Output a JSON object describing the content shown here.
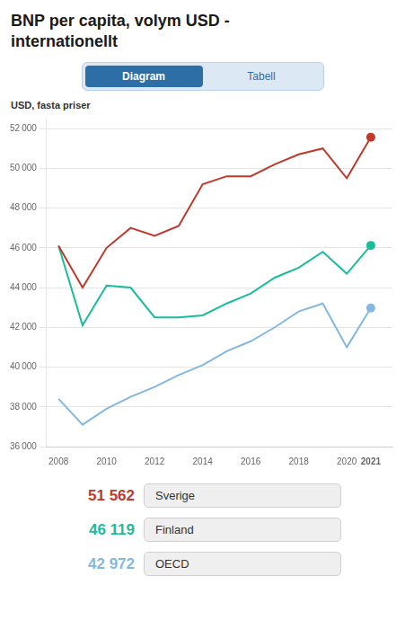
{
  "chart_data": {
    "type": "line",
    "title": [
      "BNP per capita, volym USD -",
      "internationellt"
    ],
    "ylabel": "USD, fasta priser",
    "annotations": [
      "Diagram",
      "Tabell"
    ],
    "x": [
      2008,
      2009,
      2010,
      2011,
      2012,
      2013,
      2014,
      2015,
      2016,
      2017,
      2018,
      2019,
      2020,
      2021
    ],
    "series": [
      {
        "name": "Sverige",
        "color": "#c0392b",
        "legend_value": "51 562",
        "values": [
          46100,
          44000,
          46000,
          47000,
          46600,
          47100,
          49200,
          49600,
          49600,
          50200,
          50700,
          51000,
          49500,
          51562
        ]
      },
      {
        "name": "Finland",
        "color": "#1abc9c",
        "legend_value": "46 119",
        "values": [
          46100,
          42100,
          44100,
          44000,
          42500,
          42500,
          42600,
          43200,
          43700,
          44500,
          45000,
          45800,
          44700,
          46119
        ]
      },
      {
        "name": "OECD",
        "color": "#85b8e0",
        "legend_value": "42 972",
        "values": [
          38400,
          37100,
          37900,
          38500,
          39000,
          39600,
          40100,
          40800,
          41300,
          42000,
          42800,
          43200,
          41000,
          42972
        ]
      }
    ],
    "xlim": [
      2007.5,
      2021.9
    ],
    "xticks": [
      2008,
      2010,
      2012,
      2014,
      2016,
      2018,
      2020,
      2021
    ],
    "ylim": [
      36000,
      52500
    ],
    "yticks": [
      {
        "value": 36000,
        "label": "36 000"
      },
      {
        "value": 38000,
        "label": "38 000"
      },
      {
        "value": 40000,
        "label": "40 000"
      },
      {
        "value": 42000,
        "label": "42 000"
      },
      {
        "value": 44000,
        "label": "44 000"
      },
      {
        "value": 46000,
        "label": "46 000"
      },
      {
        "value": 48000,
        "label": "48 000"
      },
      {
        "value": 50000,
        "label": "50 000"
      },
      {
        "value": 52000,
        "label": "52 000"
      }
    ],
    "grid": true
  }
}
